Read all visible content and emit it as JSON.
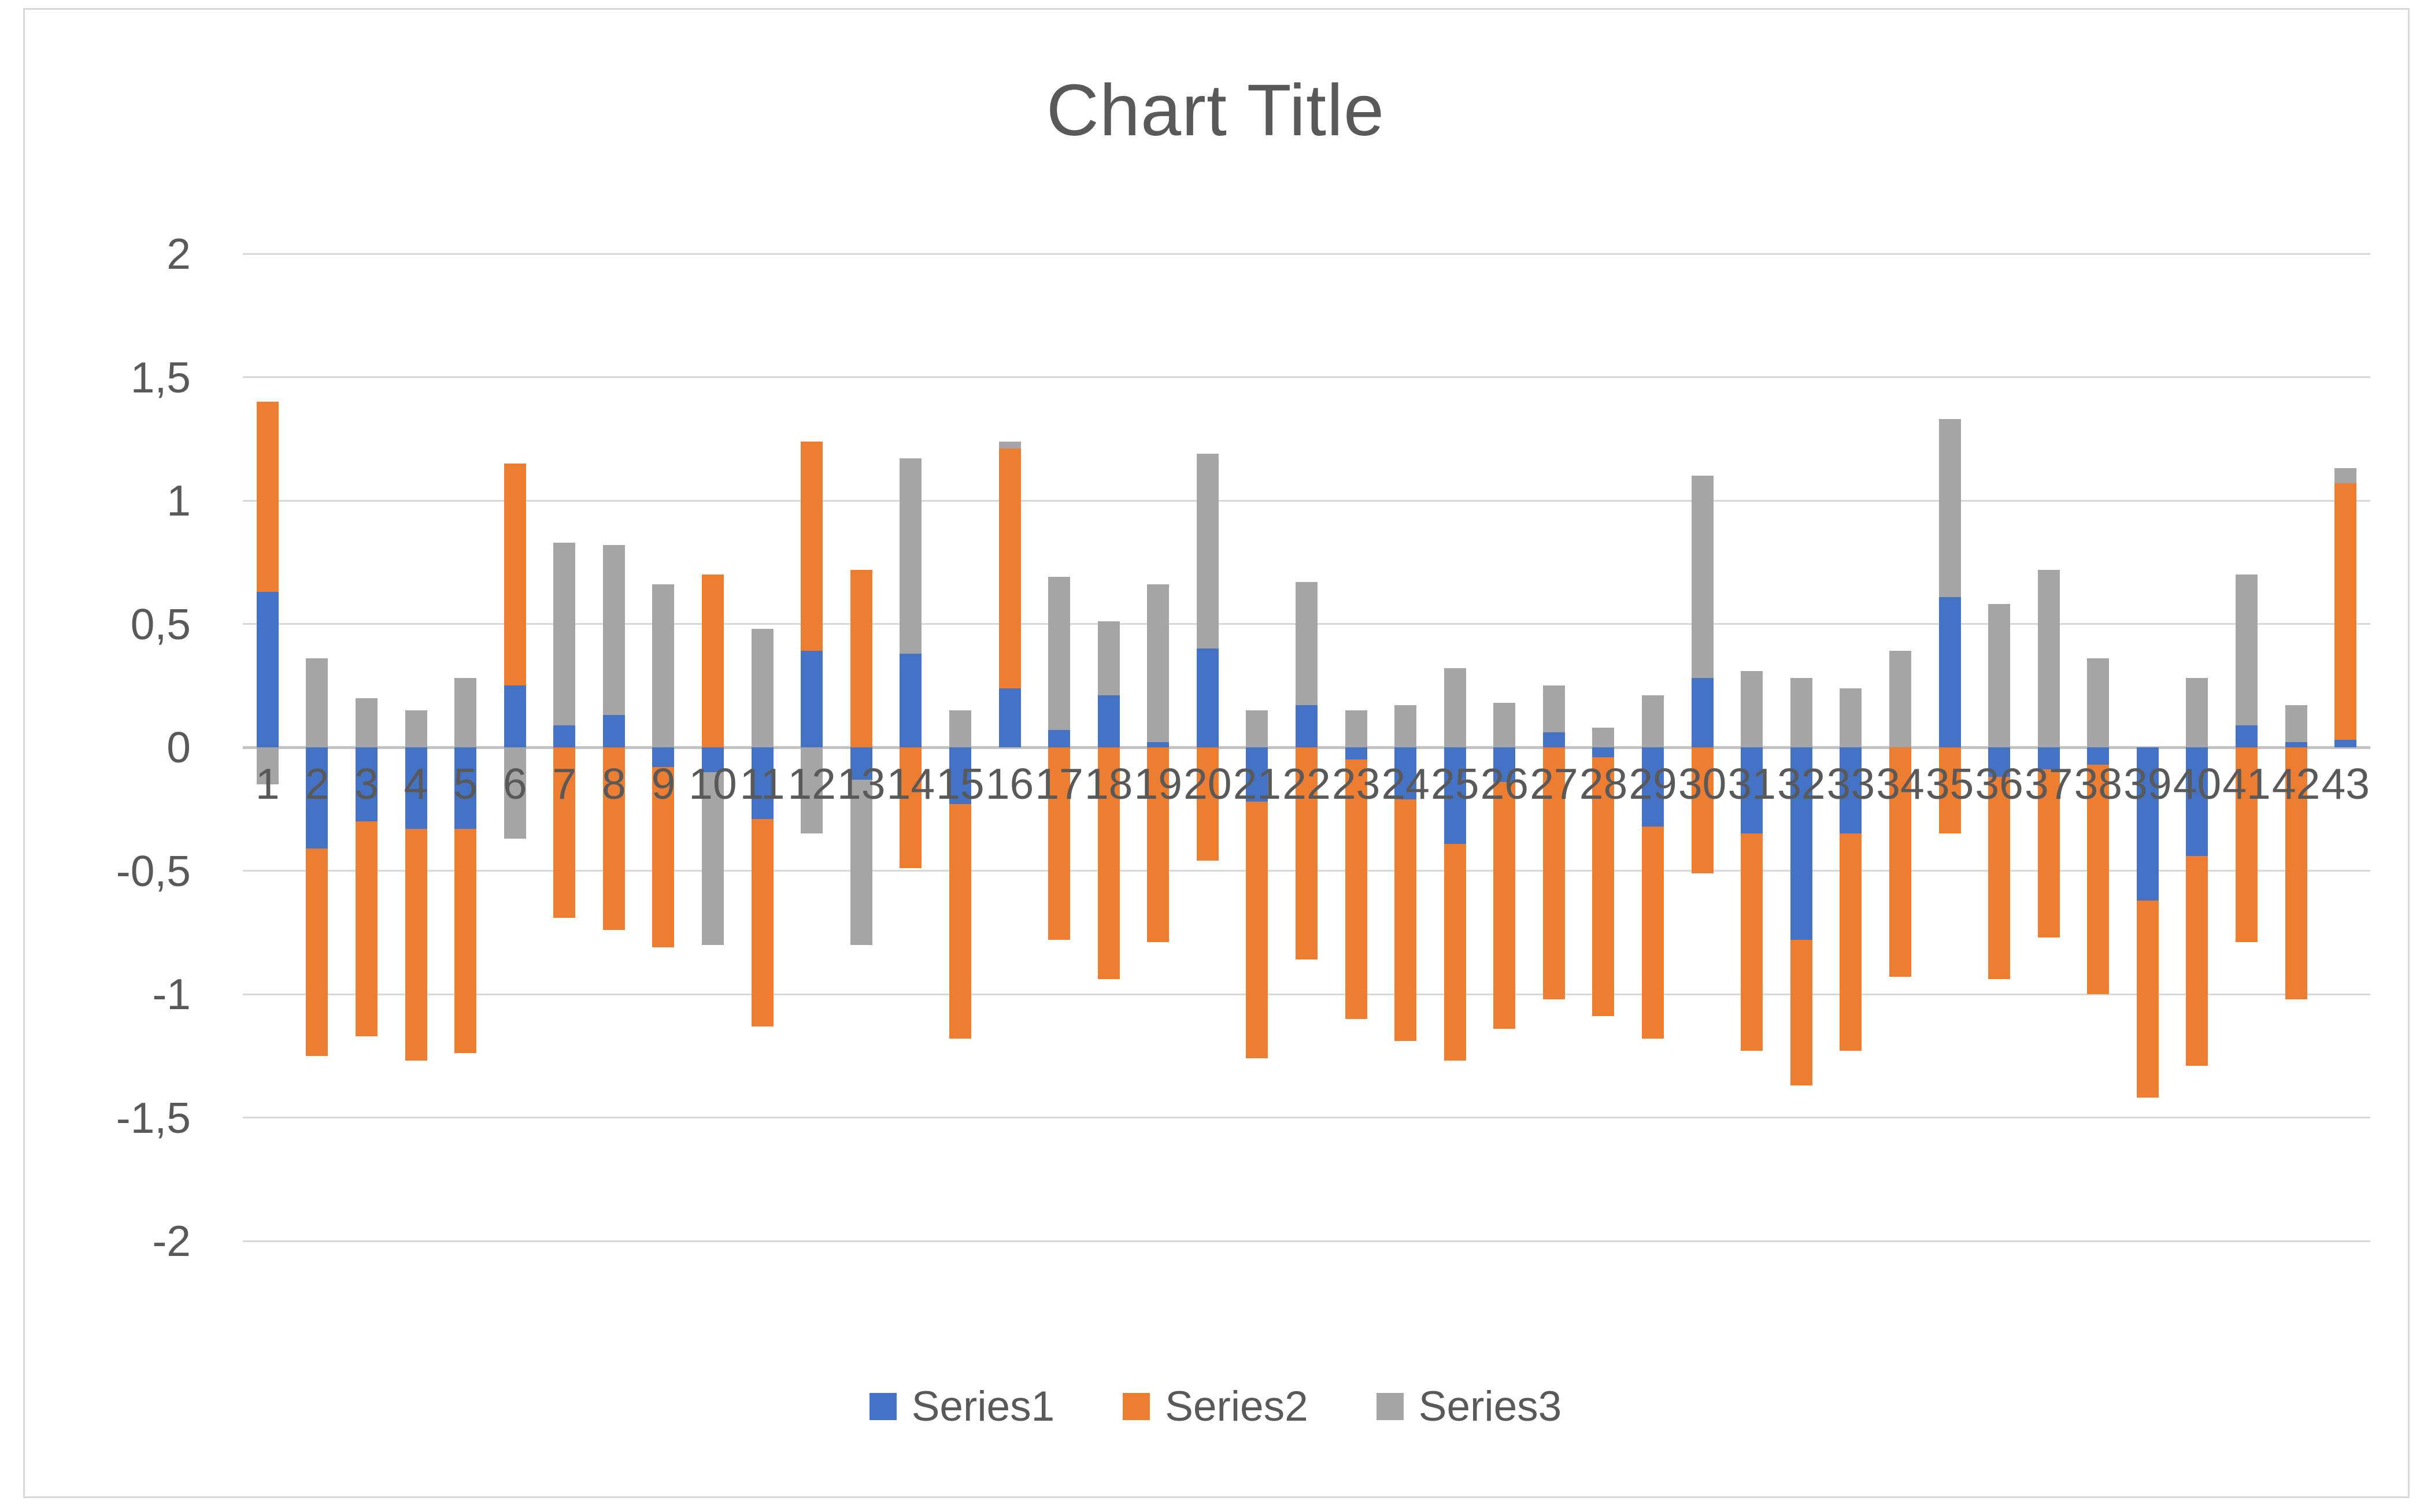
{
  "title": "Chart Title",
  "colors": {
    "series1": "#4472C4",
    "series2": "#ED7D31",
    "series3": "#A5A5A5",
    "gridline": "#D9D9D9",
    "zero_line": "#C3C3C3",
    "text": "#595959",
    "border": "#D9D9D9",
    "background": "#FFFFFF"
  },
  "legend": {
    "position": "bottom",
    "items": [
      {
        "label": "Series1",
        "color": "#4472C4"
      },
      {
        "label": "Series2",
        "color": "#ED7D31"
      },
      {
        "label": "Series3",
        "color": "#A5A5A5"
      }
    ]
  },
  "y_axis": {
    "min": -2,
    "max": 2,
    "ticks": [
      {
        "label": "2",
        "value": 2
      },
      {
        "label": "1,5",
        "value": 1.5
      },
      {
        "label": "1",
        "value": 1
      },
      {
        "label": "0,5",
        "value": 0.5
      },
      {
        "label": "0",
        "value": 0
      },
      {
        "label": "-0,5",
        "value": -0.5
      },
      {
        "label": "-1",
        "value": -1
      },
      {
        "label": "-1,5",
        "value": -1.5
      },
      {
        "label": "-2",
        "value": -2
      }
    ]
  },
  "chart_data": {
    "type": "bar",
    "stacked": true,
    "grid": true,
    "legend_position": "bottom",
    "title": "Chart Title",
    "xlabel": "",
    "ylabel": "",
    "ylim": [
      -2,
      2
    ],
    "categories": [
      "1",
      "2",
      "3",
      "4",
      "5",
      "6",
      "7",
      "8",
      "9",
      "10",
      "11",
      "12",
      "13",
      "14",
      "15",
      "16",
      "17",
      "18",
      "19",
      "20",
      "21",
      "22",
      "23",
      "24",
      "25",
      "26",
      "27",
      "28",
      "29",
      "30",
      "31",
      "32",
      "33",
      "34",
      "35",
      "36",
      "37",
      "38",
      "39",
      "40",
      "41",
      "42",
      "43"
    ],
    "series": [
      {
        "name": "Series1",
        "color": "#4472C4",
        "values": [
          0.63,
          -0.41,
          -0.3,
          -0.33,
          -0.33,
          0.25,
          0.09,
          0.13,
          -0.08,
          -0.1,
          -0.29,
          0.39,
          -0.13,
          0.38,
          -0.23,
          0.24,
          0.07,
          0.21,
          0.02,
          0.4,
          -0.22,
          0.17,
          -0.05,
          -0.21,
          -0.39,
          -0.14,
          0.06,
          -0.04,
          -0.32,
          0.28,
          -0.35,
          -0.78,
          -0.35,
          0.0,
          0.61,
          -0.12,
          -0.09,
          -0.07,
          -0.62,
          -0.44,
          0.09,
          0.02,
          0.03
        ]
      },
      {
        "name": "Series2",
        "color": "#ED7D31",
        "values": [
          0.77,
          -0.84,
          -0.87,
          -0.94,
          -0.91,
          0.9,
          -0.69,
          -0.74,
          -0.73,
          0.7,
          -0.84,
          0.85,
          0.72,
          -0.49,
          -0.95,
          0.97,
          -0.78,
          -0.94,
          -0.79,
          -0.46,
          -1.04,
          -0.86,
          -1.05,
          -0.98,
          -0.88,
          -1.0,
          -1.02,
          -1.05,
          -0.86,
          -0.51,
          -0.88,
          -0.59,
          -0.88,
          -0.93,
          -0.35,
          -0.82,
          -0.68,
          -0.93,
          -0.8,
          -0.85,
          -0.79,
          -1.02,
          1.04
        ]
      },
      {
        "name": "Series3",
        "color": "#A5A5A5",
        "values": [
          -0.15,
          0.36,
          0.2,
          0.15,
          0.28,
          -0.37,
          0.74,
          0.69,
          0.66,
          -0.7,
          0.48,
          -0.35,
          -0.67,
          0.79,
          0.15,
          0.03,
          0.62,
          0.3,
          0.64,
          0.79,
          0.15,
          0.5,
          0.15,
          0.17,
          0.32,
          0.18,
          0.19,
          0.08,
          0.21,
          0.82,
          0.31,
          0.28,
          0.24,
          0.39,
          0.72,
          0.58,
          0.72,
          0.36,
          0.0,
          0.28,
          0.61,
          0.15,
          0.06
        ]
      }
    ]
  }
}
